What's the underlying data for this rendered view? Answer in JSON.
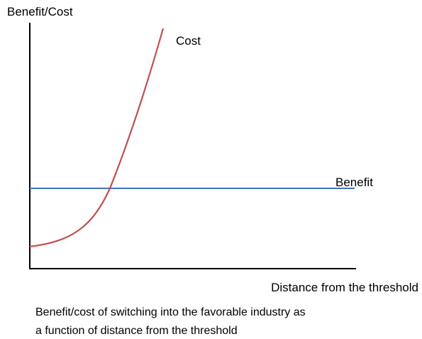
{
  "y_axis_label": "Benefit/Cost",
  "x_axis_label": "Distance from the threshold",
  "curves": [
    {
      "label": "Cost"
    },
    {
      "label": "Benefit"
    }
  ],
  "caption": [
    "Benefit/cost of switching into the favorable industry as",
    "a function of distance from the threshold"
  ]
}
